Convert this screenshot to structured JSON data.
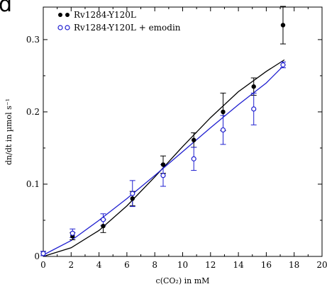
{
  "panel_letter": "d",
  "chart_data": {
    "type": "scatter",
    "xlabel": "c(CO₂) in mM",
    "ylabel": "dn/dt in µmol s⁻¹",
    "xlim": [
      0,
      20
    ],
    "ylim": [
      0,
      0.345
    ],
    "x_ticks": [
      0,
      2,
      4,
      6,
      8,
      10,
      12,
      14,
      16,
      18,
      20
    ],
    "y_ticks": [
      0,
      0.1,
      0.2,
      0.3
    ],
    "x_tick_labels": [
      "0",
      "2",
      "4",
      "6",
      "8",
      "10",
      "12",
      "14",
      "16",
      "18",
      "20"
    ],
    "y_tick_labels": [
      "0",
      "0.1",
      "0.2",
      "0.3"
    ],
    "legend_position": "top-left",
    "grid": false,
    "series": [
      {
        "name": "Rv1284-Y120L",
        "marker": "filled-circle",
        "color": "#000000",
        "points": [
          {
            "x": 0.0,
            "y": 0.004,
            "err": 0.003
          },
          {
            "x": 2.1,
            "y": 0.028,
            "err": 0.005
          },
          {
            "x": 4.3,
            "y": 0.042,
            "err": 0.009
          },
          {
            "x": 6.4,
            "y": 0.08,
            "err": 0.01
          },
          {
            "x": 8.6,
            "y": 0.127,
            "err": 0.012
          },
          {
            "x": 10.8,
            "y": 0.161,
            "err": 0.01
          },
          {
            "x": 12.9,
            "y": 0.2,
            "err": 0.026
          },
          {
            "x": 15.1,
            "y": 0.235,
            "err": 0.012
          },
          {
            "x": 17.2,
            "y": 0.32,
            "err": 0.026
          }
        ],
        "fit": [
          [
            0,
            0
          ],
          [
            2,
            0.012
          ],
          [
            4,
            0.036
          ],
          [
            6,
            0.07
          ],
          [
            8,
            0.11
          ],
          [
            10,
            0.152
          ],
          [
            12,
            0.192
          ],
          [
            14,
            0.228
          ],
          [
            16,
            0.256
          ],
          [
            17.3,
            0.272
          ]
        ]
      },
      {
        "name": "Rv1284-Y120L + emodin",
        "marker": "open-circle",
        "color": "#1f1fd0",
        "points": [
          {
            "x": 0.0,
            "y": 0.004,
            "err": 0.003
          },
          {
            "x": 2.1,
            "y": 0.032,
            "err": 0.006
          },
          {
            "x": 4.3,
            "y": 0.051,
            "err": 0.008
          },
          {
            "x": 6.4,
            "y": 0.087,
            "err": 0.018
          },
          {
            "x": 8.6,
            "y": 0.112,
            "err": 0.015
          },
          {
            "x": 10.8,
            "y": 0.135,
            "err": 0.016
          },
          {
            "x": 12.9,
            "y": 0.175,
            "err": 0.02
          },
          {
            "x": 15.1,
            "y": 0.204,
            "err": 0.022
          },
          {
            "x": 17.2,
            "y": 0.265,
            "err": 0.004
          }
        ],
        "fit": [
          [
            0,
            0.002
          ],
          [
            2,
            0.022
          ],
          [
            4,
            0.05
          ],
          [
            6,
            0.08
          ],
          [
            8,
            0.112
          ],
          [
            10,
            0.145
          ],
          [
            12,
            0.178
          ],
          [
            14,
            0.21
          ],
          [
            16,
            0.24
          ],
          [
            17.3,
            0.265
          ]
        ]
      }
    ]
  }
}
